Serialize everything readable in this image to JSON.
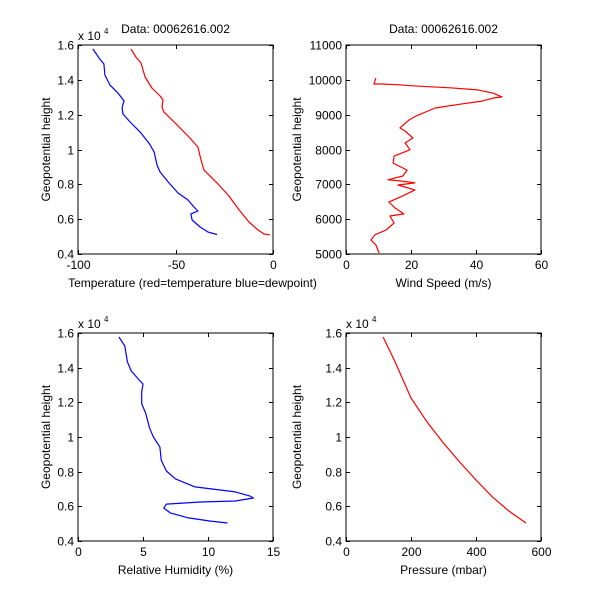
{
  "figure": {
    "background": "#ffffff"
  },
  "chart_data": [
    {
      "id": "temperature",
      "type": "line",
      "title": "Data: 00062616.002",
      "xlabel": "Temperature (red=temperature blue=dewpoint)",
      "ylabel": "Geopotential height",
      "xlim": [
        -100,
        0
      ],
      "ylim": [
        4000,
        16000
      ],
      "y_exponent_label": "x 10",
      "y_exponent": "4",
      "xticks": [
        -100,
        -50,
        0
      ],
      "xtick_labels": [
        "-100",
        "-50",
        "0"
      ],
      "yticks": [
        4000,
        6000,
        8000,
        10000,
        12000,
        14000,
        16000
      ],
      "ytick_labels": [
        "0.4",
        "0.6",
        "0.8",
        "1",
        "1.2",
        "1.4",
        "1.6"
      ],
      "grid": false,
      "series": [
        {
          "name": "temperature",
          "color": "#ff0000",
          "x": [
            -72.8,
            -70.3,
            -67.7,
            -65.6,
            -62.1,
            -57.9,
            -56.4,
            -56.9,
            -55.9,
            -49.7,
            -42.6,
            -38.5,
            -36.9,
            -35.4,
            -28.7,
            -22.6,
            -20.0,
            -17.4,
            -12.3,
            -7.7,
            -4.6,
            -1.5
          ],
          "y": [
            15770,
            15310,
            14970,
            14160,
            13530,
            13070,
            12840,
            12440,
            12150,
            11470,
            10660,
            10140,
            9400,
            8820,
            8080,
            7330,
            6930,
            6530,
            5840,
            5380,
            5150,
            5100
          ]
        },
        {
          "name": "dewpoint",
          "color": "#0000ff",
          "x": [
            -92.3,
            -89.2,
            -86.7,
            -86.2,
            -83.6,
            -79.5,
            -76.4,
            -77.4,
            -76.9,
            -73.3,
            -68.2,
            -63.6,
            -61.0,
            -59.5,
            -57.9,
            -53.8,
            -48.7,
            -43.6,
            -40.5,
            -38.5,
            -42.1,
            -41.5,
            -37.4,
            -33.3,
            -28.7
          ],
          "y": [
            15770,
            15250,
            14910,
            14280,
            13700,
            13240,
            12790,
            12380,
            12040,
            11580,
            11010,
            10370,
            9860,
            9110,
            8710,
            8140,
            7500,
            7100,
            6700,
            6470,
            6300,
            5950,
            5550,
            5260,
            5120
          ]
        }
      ]
    },
    {
      "id": "wind",
      "type": "line",
      "title": "Data: 00062616.002",
      "xlabel": "Wind Speed (m/s)",
      "ylabel": "Geopotential height",
      "xlim": [
        0,
        60
      ],
      "ylim": [
        5000,
        11000
      ],
      "y_exponent_label": "",
      "y_exponent": "",
      "xticks": [
        0,
        20,
        40,
        60
      ],
      "xtick_labels": [
        "0",
        "20",
        "40",
        "60"
      ],
      "yticks": [
        5000,
        6000,
        7000,
        8000,
        9000,
        10000,
        11000
      ],
      "ytick_labels": [
        "5000",
        "6000",
        "7000",
        "8000",
        "9000",
        "10000",
        "11000"
      ],
      "grid": false,
      "series": [
        {
          "name": "wind speed",
          "color": "#ff0000",
          "x": [
            10.2,
            9.2,
            7.7,
            8.9,
            12.3,
            14.8,
            13.5,
            17.8,
            15.1,
            13.2,
            17.5,
            21.2,
            16.0,
            21.2,
            16.6,
            12.9,
            17.5,
            18.8,
            14.5,
            14.8,
            19.7,
            18.2,
            20.6,
            18.2,
            16.6,
            19.4,
            21.5,
            27.4,
            35.1,
            41.8,
            45.5,
            48.0,
            45.2,
            40.6,
            32.0,
            20.3,
            15.7,
            10.5,
            8.6,
            9.2
          ],
          "y": [
            5030,
            5260,
            5400,
            5550,
            5690,
            5890,
            6090,
            6150,
            6320,
            6490,
            6670,
            6840,
            6980,
            7040,
            7100,
            7130,
            7240,
            7410,
            7610,
            7810,
            7990,
            8190,
            8330,
            8530,
            8620,
            8850,
            8960,
            9190,
            9300,
            9390,
            9480,
            9510,
            9620,
            9710,
            9770,
            9830,
            9860,
            9880,
            9880,
            10050
          ]
        }
      ]
    },
    {
      "id": "humidity",
      "type": "line",
      "title": "",
      "xlabel": "Relative Humidity (%)",
      "ylabel": "Geopotential height",
      "xlim": [
        0,
        15
      ],
      "ylim": [
        4000,
        16000
      ],
      "y_exponent_label": "x 10",
      "y_exponent": "4",
      "xticks": [
        0,
        5,
        10,
        15
      ],
      "xtick_labels": [
        "0",
        "5",
        "10",
        "15"
      ],
      "yticks": [
        4000,
        6000,
        8000,
        10000,
        12000,
        14000,
        16000
      ],
      "ytick_labels": [
        "0.4",
        "0.6",
        "0.8",
        "1",
        "1.2",
        "1.4",
        "1.6"
      ],
      "grid": false,
      "series": [
        {
          "name": "relative humidity",
          "color": "#0000ff",
          "x": [
            3.15,
            3.6,
            3.8,
            4.1,
            4.7,
            5.0,
            4.9,
            4.9,
            5.2,
            5.5,
            5.8,
            6.3,
            6.4,
            6.8,
            7.5,
            9.0,
            12.1,
            13.2,
            13.5,
            12.1,
            9.4,
            6.8,
            6.6,
            7.1,
            8.5,
            10.2,
            11.5
          ],
          "y": [
            15770,
            15250,
            14330,
            13810,
            13290,
            13060,
            12600,
            11910,
            11390,
            10530,
            10000,
            9420,
            8670,
            8040,
            7580,
            7120,
            6830,
            6600,
            6480,
            6310,
            6250,
            6130,
            5900,
            5620,
            5330,
            5150,
            5040
          ]
        }
      ]
    },
    {
      "id": "pressure",
      "type": "line",
      "title": "",
      "xlabel": "Pressure (mbar)",
      "ylabel": "Geopotential height",
      "xlim": [
        0,
        600
      ],
      "ylim": [
        4000,
        16000
      ],
      "y_exponent_label": "x 10",
      "y_exponent": "4",
      "xticks": [
        0,
        200,
        400,
        600
      ],
      "xtick_labels": [
        "0",
        "200",
        "400",
        "600"
      ],
      "yticks": [
        4000,
        6000,
        8000,
        10000,
        12000,
        14000,
        16000
      ],
      "ytick_labels": [
        "0.4",
        "0.6",
        "0.8",
        "1",
        "1.2",
        "1.4",
        "1.6"
      ],
      "grid": false,
      "series": [
        {
          "name": "pressure",
          "color": "#ff0000",
          "x": [
            114,
            151,
            200,
            250,
            300,
            350,
            400,
            450,
            500,
            554
          ],
          "y": [
            15770,
            14330,
            12250,
            10850,
            9650,
            8550,
            7520,
            6550,
            5750,
            5040
          ]
        }
      ]
    }
  ]
}
